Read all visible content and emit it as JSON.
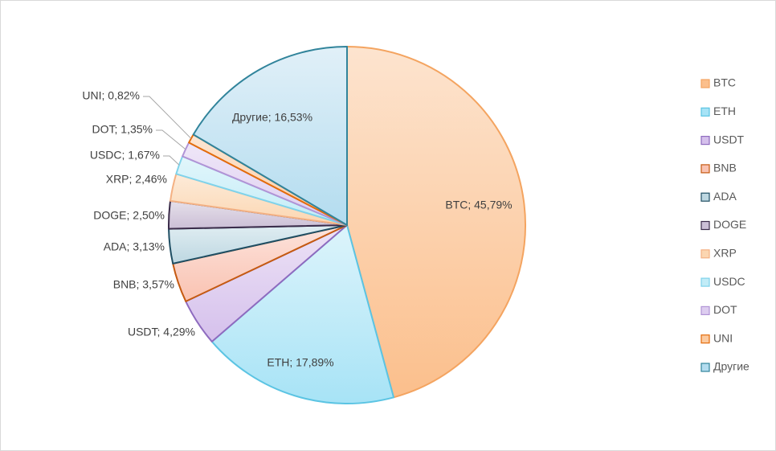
{
  "chart_data": {
    "type": "pie",
    "title": "",
    "legend_position": "right",
    "slices": [
      {
        "name": "BTC",
        "value": 45.79,
        "label": "BTC; 45,79%",
        "fill_light": "#fde4cf",
        "fill_dark": "#fbbf8c",
        "stroke": "#f4a460"
      },
      {
        "name": "ETH",
        "value": 17.89,
        "label": "ETH; 17,89%",
        "fill_light": "#ddf4fb",
        "fill_dark": "#a7e3f6",
        "stroke": "#5bc4e3"
      },
      {
        "name": "USDT",
        "value": 4.29,
        "label": "USDT; 4,29%",
        "fill_light": "#ede3f6",
        "fill_dark": "#d5c0ec",
        "stroke": "#8e6bbf"
      },
      {
        "name": "BNB",
        "value": 3.57,
        "label": "BNB; 3,57%",
        "fill_light": "#fde3dc",
        "fill_dark": "#f9c2b1",
        "stroke": "#c55a11"
      },
      {
        "name": "ADA",
        "value": 3.13,
        "label": "ADA; 3,13%",
        "fill_light": "#e0edf2",
        "fill_dark": "#bdd7e1",
        "stroke": "#1f4e63"
      },
      {
        "name": "DOGE",
        "value": 2.5,
        "label": "DOGE; 2,50%",
        "fill_light": "#e6e0ea",
        "fill_dark": "#cbbfd6",
        "stroke": "#3b2c4a"
      },
      {
        "name": "XRP",
        "value": 2.46,
        "label": "XRP; 2,46%",
        "fill_light": "#fdebd9",
        "fill_dark": "#fbd6b1",
        "stroke": "#f4b183"
      },
      {
        "name": "USDC",
        "value": 1.67,
        "label": "USDC; 1,67%",
        "fill_light": "#e2f6fb",
        "fill_dark": "#c2ecf7",
        "stroke": "#7fd3eb"
      },
      {
        "name": "DOT",
        "value": 1.35,
        "label": "DOT; 1,35%",
        "fill_light": "#efe7f8",
        "fill_dark": "#ddcdf0",
        "stroke": "#b194d6"
      },
      {
        "name": "UNI",
        "value": 0.82,
        "label": "UNI; 0,82%",
        "fill_light": "#fde6d3",
        "fill_dark": "#fbcaa0",
        "stroke": "#e46c0a"
      },
      {
        "name": "Другие",
        "value": 16.53,
        "label": "Другие; 16,53%",
        "fill_light": "#e1f0f8",
        "fill_dark": "#b3dcef",
        "stroke": "#31849b"
      }
    ]
  }
}
